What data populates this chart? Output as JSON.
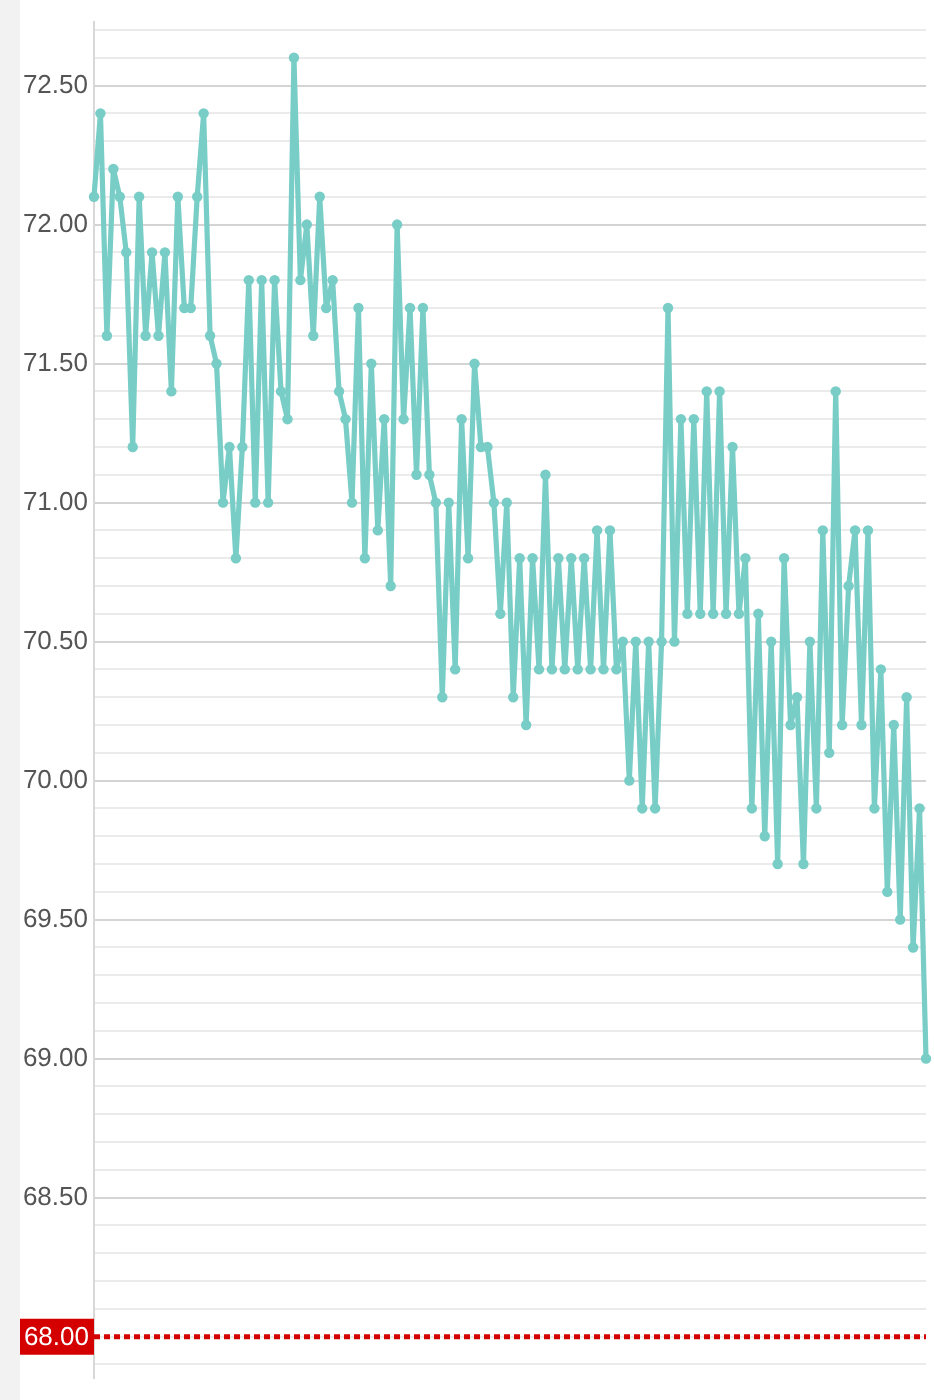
{
  "chart_data": {
    "type": "line",
    "categories": [
      null,
      null,
      null,
      null,
      null,
      null,
      null,
      null,
      null,
      null,
      null,
      null,
      null,
      null,
      null,
      null,
      null,
      null,
      null,
      null,
      null,
      null,
      null,
      null,
      null,
      null,
      null,
      null,
      null,
      null,
      null,
      null,
      null,
      null,
      null,
      null,
      null,
      null,
      null,
      null,
      null,
      null,
      null,
      null,
      null,
      null,
      null,
      null,
      null,
      null,
      null,
      null,
      null,
      null,
      null,
      null,
      null,
      null,
      null,
      null,
      null,
      null,
      null,
      null,
      null,
      null,
      null,
      null,
      null,
      null,
      null,
      null,
      null,
      null,
      null,
      null,
      null,
      null,
      null,
      null,
      null,
      null,
      null,
      null,
      null,
      null,
      null,
      null,
      null,
      null,
      null,
      null,
      null,
      null,
      null,
      null,
      null,
      null,
      null,
      null,
      null,
      null,
      null,
      null,
      null,
      null,
      null,
      null,
      null,
      null,
      null,
      null,
      null,
      null,
      null,
      null,
      null,
      null,
      null,
      null,
      null,
      null,
      null,
      null,
      null,
      null,
      null,
      null,
      null,
      null
    ],
    "values": [
      72.1,
      72.4,
      71.6,
      72.2,
      72.1,
      71.9,
      71.2,
      72.1,
      71.6,
      71.9,
      71.6,
      71.9,
      71.4,
      72.1,
      71.7,
      71.7,
      72.1,
      72.4,
      71.6,
      71.5,
      71.0,
      71.2,
      70.8,
      71.2,
      71.8,
      71.0,
      71.8,
      71.0,
      71.8,
      71.4,
      71.3,
      72.6,
      71.8,
      72.0,
      71.6,
      72.1,
      71.7,
      71.8,
      71.4,
      71.3,
      71.0,
      71.7,
      70.8,
      71.5,
      70.9,
      71.3,
      70.7,
      72.0,
      71.3,
      71.7,
      71.1,
      71.7,
      71.1,
      71.0,
      70.3,
      71.0,
      70.4,
      71.3,
      70.8,
      71.5,
      71.2,
      71.2,
      71.0,
      70.6,
      71.0,
      70.3,
      70.8,
      70.2,
      70.8,
      70.4,
      71.1,
      70.4,
      70.8,
      70.4,
      70.8,
      70.4,
      70.8,
      70.4,
      70.9,
      70.4,
      70.9,
      70.4,
      70.5,
      70.0,
      70.5,
      69.9,
      70.5,
      69.9,
      70.5,
      71.7,
      70.5,
      71.3,
      70.6,
      71.3,
      70.6,
      71.4,
      70.6,
      71.4,
      70.6,
      71.2,
      70.6,
      70.8,
      69.9,
      70.6,
      69.8,
      70.5,
      69.7,
      70.8,
      70.2,
      70.3,
      69.7,
      70.5,
      69.9,
      70.9,
      70.1,
      71.4,
      70.2,
      70.7,
      70.9,
      70.2,
      70.9,
      69.9,
      70.4,
      69.6,
      70.2,
      69.5,
      70.3,
      69.4,
      69.9,
      69.0
    ],
    "color": "#78cdc6",
    "marker": "circle",
    "ylim": [
      67.85,
      72.73
    ],
    "yticks": [
      {
        "value": 67.9,
        "label": null
      },
      {
        "value": 68,
        "label": null
      },
      {
        "value": 68.1,
        "label": null
      },
      {
        "value": 68.2,
        "label": null
      },
      {
        "value": 68.3,
        "label": null
      },
      {
        "value": 68.4,
        "label": null
      },
      {
        "value": 68.5,
        "label": "68.50"
      },
      {
        "value": 68.6,
        "label": null
      },
      {
        "value": 68.7,
        "label": null
      },
      {
        "value": 68.8,
        "label": null
      },
      {
        "value": 68.9,
        "label": null
      },
      {
        "value": 69,
        "label": "69.00"
      },
      {
        "value": 69.1,
        "label": null
      },
      {
        "value": 69.2,
        "label": null
      },
      {
        "value": 69.3,
        "label": null
      },
      {
        "value": 69.4,
        "label": null
      },
      {
        "value": 69.5,
        "label": "69.50"
      },
      {
        "value": 69.6,
        "label": null
      },
      {
        "value": 69.7,
        "label": null
      },
      {
        "value": 69.8,
        "label": null
      },
      {
        "value": 69.9,
        "label": null
      },
      {
        "value": 70,
        "label": "70.00"
      },
      {
        "value": 70.1,
        "label": null
      },
      {
        "value": 70.2,
        "label": null
      },
      {
        "value": 70.3,
        "label": null
      },
      {
        "value": 70.4,
        "label": null
      },
      {
        "value": 70.5,
        "label": "70.50"
      },
      {
        "value": 70.6,
        "label": null
      },
      {
        "value": 70.7,
        "label": null
      },
      {
        "value": 70.8,
        "label": null
      },
      {
        "value": 70.9,
        "label": null
      },
      {
        "value": 71,
        "label": "71.00"
      },
      {
        "value": 71.1,
        "label": null
      },
      {
        "value": 71.2,
        "label": null
      },
      {
        "value": 71.3,
        "label": null
      },
      {
        "value": 71.4,
        "label": null
      },
      {
        "value": 71.5,
        "label": "71.50"
      },
      {
        "value": 71.6,
        "label": null
      },
      {
        "value": 71.7,
        "label": null
      },
      {
        "value": 71.8,
        "label": null
      },
      {
        "value": 71.9,
        "label": null
      },
      {
        "value": 72,
        "label": "72.00"
      },
      {
        "value": 72.1,
        "label": null
      },
      {
        "value": 72.2,
        "label": null
      },
      {
        "value": 72.3,
        "label": null
      },
      {
        "value": 72.4,
        "label": null
      },
      {
        "value": 72.5,
        "label": "72.50"
      },
      {
        "value": 72.6,
        "label": null
      },
      {
        "value": 72.7,
        "label": null
      }
    ],
    "grid": "y",
    "tick_labels": "y",
    "ref_lines": [
      {
        "axis": "y",
        "value": 68,
        "label": "68.00",
        "color": "#d40000",
        "line_style": "dotted"
      }
    ]
  }
}
